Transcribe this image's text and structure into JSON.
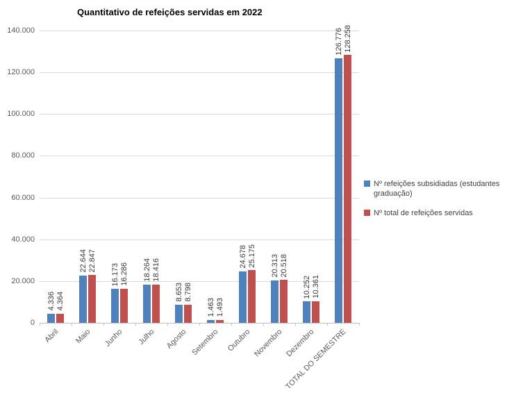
{
  "chart_data": {
    "type": "bar",
    "title": "Quantitativo de refeições servidas em 2022",
    "categories": [
      "Abril",
      "Maio",
      "Junho",
      "Julho",
      "Agosto",
      "Setembro",
      "Outubro",
      "Novembro",
      "Dezembro",
      "TOTAL DO SEMESTRE"
    ],
    "series": [
      {
        "name": "Nº refeições subsidiadas (estudantes graduação)",
        "color": "#4F81BD",
        "values": [
          4336,
          22644,
          16173,
          18264,
          8653,
          1463,
          24678,
          20313,
          10252,
          126776
        ]
      },
      {
        "name": "Nº total de refeições servidas",
        "color": "#C0504D",
        "values": [
          4364,
          22847,
          16286,
          18416,
          8798,
          1493,
          25175,
          20518,
          10361,
          128258
        ]
      }
    ],
    "ylim": [
      0,
      140000
    ],
    "ytick_step": 20000,
    "grid": true,
    "legend_position": "right",
    "number_format": "thousands-dot",
    "gridline_color": "#D9D9D9",
    "axis_text_color": "#595959"
  }
}
